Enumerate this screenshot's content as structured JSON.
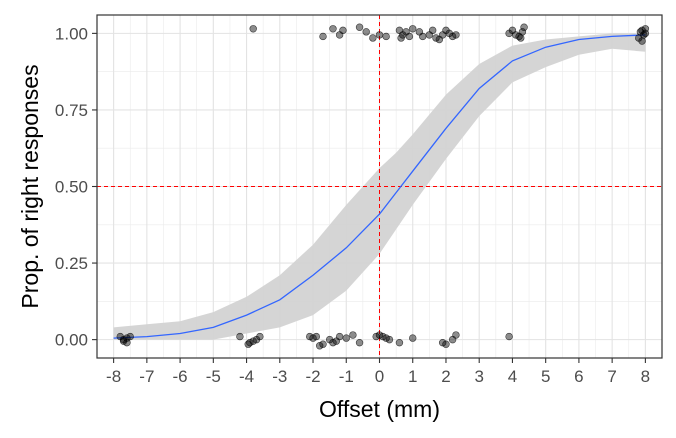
{
  "chart_data": {
    "type": "scatter",
    "title": "",
    "xlabel": "Offset (mm)",
    "ylabel": "Prop. of right responses",
    "xlim": [
      -8.5,
      8.5
    ],
    "ylim": [
      -0.06,
      1.06
    ],
    "x_ticks": [
      -8,
      -7,
      -6,
      -5,
      -4,
      -3,
      -2,
      -1,
      0,
      1,
      2,
      3,
      4,
      5,
      6,
      7,
      8
    ],
    "x_tick_labels": [
      "-8",
      "-7",
      "-6",
      "-5",
      "-4",
      "-3",
      "-2",
      "-1",
      "0",
      "1",
      "2",
      "3",
      "4",
      "5",
      "6",
      "7",
      "8"
    ],
    "y_ticks": [
      0,
      0.25,
      0.5,
      0.75,
      1
    ],
    "y_tick_labels": [
      "0.00",
      "0.25",
      "0.50",
      "0.75",
      "1.00"
    ],
    "grid": true,
    "reference_lines": {
      "x": 0,
      "y": 0.5,
      "color": "#ff0000",
      "style": "dashed"
    },
    "fit": {
      "type": "logistic",
      "color": "#3366ff",
      "band_color": "#d3d3d3",
      "x": [
        -8,
        -7,
        -6,
        -5,
        -4,
        -3,
        -2,
        -1,
        0,
        0.5,
        1,
        2,
        3,
        4,
        5,
        6,
        7,
        8
      ],
      "y": [
        0.005,
        0.01,
        0.02,
        0.04,
        0.08,
        0.13,
        0.21,
        0.3,
        0.41,
        0.48,
        0.55,
        0.69,
        0.82,
        0.91,
        0.955,
        0.98,
        0.99,
        0.995
      ],
      "lower": [
        0.0,
        0.0,
        0.0,
        0.0,
        0.02,
        0.04,
        0.08,
        0.16,
        0.28,
        0.36,
        0.44,
        0.59,
        0.73,
        0.84,
        0.89,
        0.93,
        0.95,
        0.94
      ],
      "upper": [
        0.04,
        0.05,
        0.06,
        0.09,
        0.14,
        0.21,
        0.31,
        0.44,
        0.56,
        0.61,
        0.67,
        0.8,
        0.9,
        0.96,
        0.98,
        0.99,
        1.0,
        1.0
      ]
    },
    "points": [
      {
        "x": -7.8,
        "y": 0.01
      },
      {
        "x": -7.7,
        "y": 0.0
      },
      {
        "x": -7.6,
        "y": 0.005
      },
      {
        "x": -7.6,
        "y": -0.01
      },
      {
        "x": -7.5,
        "y": 0.01
      },
      {
        "x": -7.7,
        "y": -0.005
      },
      {
        "x": -4.2,
        "y": 0.01
      },
      {
        "x": -3.9,
        "y": -0.01
      },
      {
        "x": -3.8,
        "y": -0.005
      },
      {
        "x": -3.7,
        "y": 0.0
      },
      {
        "x": -3.6,
        "y": 0.01
      },
      {
        "x": -3.95,
        "y": -0.015
      },
      {
        "x": -2.1,
        "y": 0.01
      },
      {
        "x": -2.0,
        "y": 0.005
      },
      {
        "x": -1.9,
        "y": 0.01
      },
      {
        "x": -1.8,
        "y": -0.02
      },
      {
        "x": -1.7,
        "y": -0.015
      },
      {
        "x": -1.5,
        "y": 0.0
      },
      {
        "x": -1.4,
        "y": -0.01
      },
      {
        "x": -1.3,
        "y": -0.005
      },
      {
        "x": -1.2,
        "y": 0.01
      },
      {
        "x": -1.0,
        "y": 0.005
      },
      {
        "x": -0.8,
        "y": 0.015
      },
      {
        "x": -0.6,
        "y": -0.01
      },
      {
        "x": -0.1,
        "y": 0.01
      },
      {
        "x": 0.0,
        "y": 0.015
      },
      {
        "x": 0.1,
        "y": 0.01
      },
      {
        "x": 0.2,
        "y": 0.005
      },
      {
        "x": 0.3,
        "y": 0.0
      },
      {
        "x": 0.6,
        "y": -0.01
      },
      {
        "x": 1.0,
        "y": 0.005
      },
      {
        "x": 1.9,
        "y": -0.01
      },
      {
        "x": 2.0,
        "y": -0.015
      },
      {
        "x": 2.2,
        "y": 0.0
      },
      {
        "x": 2.3,
        "y": 0.015
      },
      {
        "x": 3.9,
        "y": 0.01
      },
      {
        "x": -3.8,
        "y": 1.015
      },
      {
        "x": -1.7,
        "y": 0.99
      },
      {
        "x": -1.4,
        "y": 1.015
      },
      {
        "x": -1.2,
        "y": 0.995
      },
      {
        "x": -1.1,
        "y": 1.01
      },
      {
        "x": -0.6,
        "y": 1.02
      },
      {
        "x": -0.4,
        "y": 1.005
      },
      {
        "x": -0.2,
        "y": 0.985
      },
      {
        "x": 0.0,
        "y": 0.995
      },
      {
        "x": 0.2,
        "y": 0.99
      },
      {
        "x": 0.6,
        "y": 1.01
      },
      {
        "x": 0.65,
        "y": 0.985
      },
      {
        "x": 0.7,
        "y": 0.995
      },
      {
        "x": 0.8,
        "y": 1.005
      },
      {
        "x": 0.9,
        "y": 0.99
      },
      {
        "x": 1.0,
        "y": 1.015
      },
      {
        "x": 1.2,
        "y": 1.005
      },
      {
        "x": 1.3,
        "y": 0.99
      },
      {
        "x": 1.5,
        "y": 0.995
      },
      {
        "x": 1.6,
        "y": 1.01
      },
      {
        "x": 1.7,
        "y": 0.985
      },
      {
        "x": 1.8,
        "y": 0.98
      },
      {
        "x": 1.9,
        "y": 0.995
      },
      {
        "x": 2.0,
        "y": 1.01
      },
      {
        "x": 2.1,
        "y": 1.0
      },
      {
        "x": 2.2,
        "y": 0.99
      },
      {
        "x": 2.3,
        "y": 0.995
      },
      {
        "x": 3.9,
        "y": 1.0
      },
      {
        "x": 4.0,
        "y": 1.01
      },
      {
        "x": 4.1,
        "y": 0.995
      },
      {
        "x": 4.2,
        "y": 0.99
      },
      {
        "x": 4.3,
        "y": 1.005
      },
      {
        "x": 4.35,
        "y": 1.02
      },
      {
        "x": 4.25,
        "y": 0.985
      },
      {
        "x": 7.8,
        "y": 0.985
      },
      {
        "x": 7.85,
        "y": 1.005
      },
      {
        "x": 7.9,
        "y": 1.01
      },
      {
        "x": 7.95,
        "y": 0.995
      },
      {
        "x": 8.0,
        "y": 1.015
      },
      {
        "x": 7.9,
        "y": 0.975
      },
      {
        "x": 8.0,
        "y": 1.0
      }
    ]
  }
}
